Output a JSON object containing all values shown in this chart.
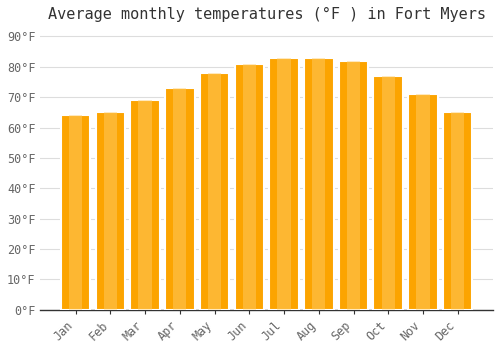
{
  "title": "Average monthly temperatures (°F ) in Fort Myers",
  "months": [
    "Jan",
    "Feb",
    "Mar",
    "Apr",
    "May",
    "Jun",
    "Jul",
    "Aug",
    "Sep",
    "Oct",
    "Nov",
    "Dec"
  ],
  "values": [
    64,
    65,
    69,
    73,
    78,
    81,
    83,
    83,
    82,
    77,
    71,
    65
  ],
  "bar_color": "#FCA400",
  "bar_edge_color": "#E89000",
  "background_color": "#FFFFFF",
  "plot_bg_color": "#FFFFFF",
  "yticks": [
    0,
    10,
    20,
    30,
    40,
    50,
    60,
    70,
    80,
    90
  ],
  "ylim": [
    0,
    93
  ],
  "title_fontsize": 11,
  "tick_fontsize": 8.5,
  "font_family": "monospace"
}
